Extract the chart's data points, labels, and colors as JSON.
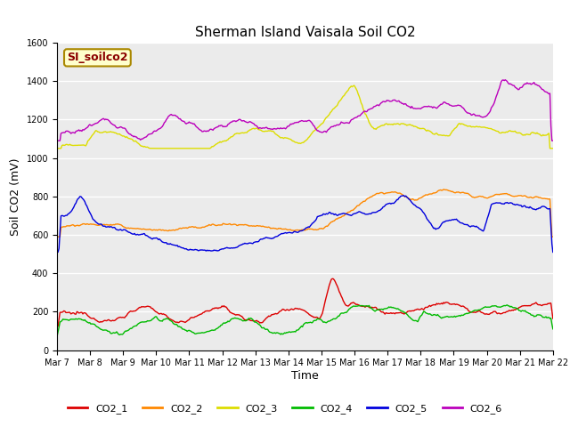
{
  "title": "Sherman Island Vaisala Soil CO2",
  "xlabel": "Time",
  "ylabel": "Soil CO2 (mV)",
  "watermark": "SI_soilco2",
  "ylim": [
    0,
    1600
  ],
  "yticks": [
    0,
    200,
    400,
    600,
    800,
    1000,
    1200,
    1400,
    1600
  ],
  "background_color": "#e8e8e8",
  "plot_bg": "#ebebeb",
  "series_colors": {
    "CO2_1": "#dd0000",
    "CO2_2": "#ff8800",
    "CO2_3": "#dddd00",
    "CO2_4": "#00bb00",
    "CO2_5": "#0000dd",
    "CO2_6": "#bb00bb"
  },
  "xtick_labels": [
    "Mar 7",
    "Mar 8",
    "Mar 9",
    "Mar 10",
    "Mar 11",
    "Mar 12",
    "Mar 13",
    "Mar 14",
    "Mar 15",
    "Mar 16",
    "Mar 17",
    "Mar 18",
    "Mar 19",
    "Mar 20",
    "Mar 21",
    "Mar 22"
  ],
  "num_points": 500,
  "figsize": [
    6.4,
    4.8
  ],
  "dpi": 100,
  "title_fontsize": 11,
  "axis_label_fontsize": 9,
  "tick_fontsize": 7,
  "legend_fontsize": 8,
  "watermark_fontsize": 9
}
